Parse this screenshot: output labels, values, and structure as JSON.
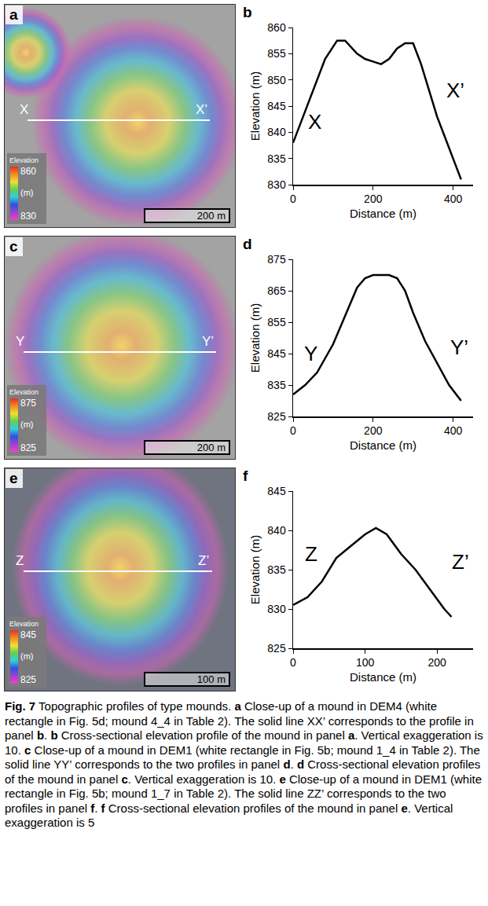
{
  "chart_data": [
    {
      "type": "line",
      "letter": "b",
      "color": "#000000",
      "grid": false,
      "x_label": "Distance (m)",
      "y_label": "Elevation (m)",
      "x": [
        0,
        20,
        50,
        80,
        110,
        130,
        160,
        180,
        200,
        220,
        240,
        260,
        280,
        300,
        320,
        340,
        360,
        380,
        400,
        420
      ],
      "values": [
        838,
        842,
        848,
        854,
        857.5,
        857.5,
        855,
        854,
        853.5,
        853,
        854,
        856,
        857,
        857,
        853,
        848,
        843,
        839,
        835,
        831
      ],
      "xlim": [
        0,
        450
      ],
      "xticks": [
        0,
        200,
        400
      ],
      "ylim": [
        830,
        860
      ],
      "yticks": [
        830,
        835,
        840,
        845,
        850,
        855,
        860
      ],
      "annotations": [
        {
          "text": "X",
          "x": 55,
          "y": 842
        },
        {
          "text": "X’",
          "x": 405,
          "y": 848
        }
      ]
    },
    {
      "type": "line",
      "letter": "d",
      "color": "#000000",
      "grid": false,
      "x_label": "Distance (m)",
      "y_label": "Elevation (m)",
      "x": [
        0,
        30,
        60,
        100,
        130,
        160,
        180,
        200,
        240,
        260,
        280,
        300,
        330,
        360,
        390,
        420
      ],
      "values": [
        832,
        835,
        839,
        848,
        857,
        866,
        869,
        870,
        870,
        869,
        865,
        858,
        849,
        842,
        835,
        830
      ],
      "xlim": [
        0,
        450
      ],
      "xticks": [
        0,
        200,
        400
      ],
      "ylim": [
        825,
        875
      ],
      "yticks": [
        825,
        835,
        845,
        855,
        865,
        875
      ],
      "annotations": [
        {
          "text": "Y",
          "x": 45,
          "y": 845
        },
        {
          "text": "Y’",
          "x": 415,
          "y": 847
        }
      ]
    },
    {
      "type": "line",
      "letter": "f",
      "color": "#000000",
      "grid": false,
      "x_label": "Distance (m)",
      "y_label": "Elevation (m)",
      "x": [
        0,
        10,
        20,
        40,
        60,
        80,
        100,
        115,
        130,
        150,
        170,
        190,
        210,
        220
      ],
      "values": [
        830.5,
        831,
        831.5,
        833.5,
        836.5,
        838,
        839.5,
        840.3,
        839.5,
        837,
        835,
        832.5,
        830,
        829
      ],
      "xlim": [
        0,
        250
      ],
      "xticks": [
        0,
        100,
        200
      ],
      "ylim": [
        825,
        845
      ],
      "yticks": [
        825,
        830,
        835,
        840,
        845
      ],
      "annotations": [
        {
          "text": "Z",
          "x": 25,
          "y": 837
        },
        {
          "text": "Z’",
          "x": 233,
          "y": 836
        }
      ]
    }
  ],
  "maps": [
    {
      "letter": "a",
      "profile_start": "X",
      "profile_end": "X’",
      "colorbar": {
        "title": "Elevation",
        "unit": "(m)",
        "max": 860,
        "min": 830
      },
      "scale_bar": "200 m"
    },
    {
      "letter": "c",
      "profile_start": "Y",
      "profile_end": "Y’",
      "colorbar": {
        "title": "Elevation",
        "unit": "(m)",
        "max": 875,
        "min": 825
      },
      "scale_bar": "200 m"
    },
    {
      "letter": "e",
      "profile_start": "Z",
      "profile_end": "Z’",
      "colorbar": {
        "title": "Elevation",
        "unit": "(m)",
        "max": 845,
        "min": 825
      },
      "scale_bar": "100 m"
    }
  ],
  "caption": [
    {
      "text": "Fig. 7",
      "bold": true
    },
    {
      "text": " Topographic profiles of type mounds. "
    },
    {
      "text": "a",
      "bold": true
    },
    {
      "text": " Close-up of a mound in DEM4 (white rectangle in Fig. 5d; mound 4_4 in Table 2). The solid line XX’ corresponds to the profile in panel "
    },
    {
      "text": "b",
      "bold": true
    },
    {
      "text": ". "
    },
    {
      "text": "b",
      "bold": true
    },
    {
      "text": " Cross-sectional elevation profile of the mound in panel "
    },
    {
      "text": "a",
      "bold": true
    },
    {
      "text": ". Vertical exaggeration is 10. "
    },
    {
      "text": "c",
      "bold": true
    },
    {
      "text": " Close-up of a mound in DEM1 (white rectangle in Fig. 5b; mound 1_4 in Table 2). The solid line YY’ corresponds to the two profiles in panel "
    },
    {
      "text": "d",
      "bold": true
    },
    {
      "text": ". "
    },
    {
      "text": "d",
      "bold": true
    },
    {
      "text": " Cross-sectional elevation profiles of the mound in panel "
    },
    {
      "text": "c",
      "bold": true
    },
    {
      "text": ". Vertical exaggeration is 10. "
    },
    {
      "text": "e",
      "bold": true
    },
    {
      "text": " Close-up of a mound in DEM1 (white rectangle in Fig. 5b; mound 1_7 in Table 2). The solid line ZZ’ corresponds to the two profiles in panel "
    },
    {
      "text": "f",
      "bold": true
    },
    {
      "text": ". "
    },
    {
      "text": "f",
      "bold": true
    },
    {
      "text": " Cross-sectional elevation profiles of the mound in panel "
    },
    {
      "text": "e",
      "bold": true
    },
    {
      "text": ". Vertical exaggeration is 5"
    }
  ]
}
